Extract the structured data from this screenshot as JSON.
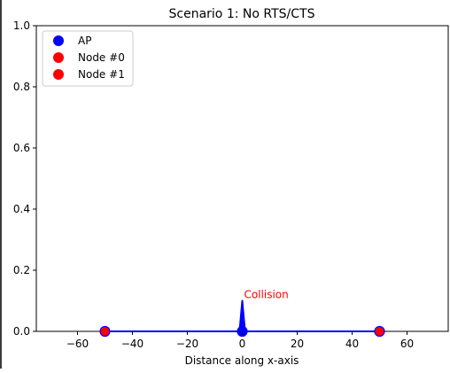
{
  "chart_data": {
    "type": "scatter",
    "title": "Scenario 1: No RTS/CTS",
    "xlabel": "Distance along x-axis",
    "ylabel": "",
    "xlim": [
      -75,
      75
    ],
    "ylim": [
      0,
      1.0
    ],
    "xticks": [
      -60,
      -40,
      -20,
      0,
      20,
      40,
      60
    ],
    "xtick_labels": [
      "−60",
      "−40",
      "−20",
      "0",
      "20",
      "40",
      "60"
    ],
    "yticks": [
      0.0,
      0.2,
      0.4,
      0.6,
      0.8,
      1.0
    ],
    "ytick_labels": [
      "0.0",
      "0.2",
      "0.4",
      "0.6",
      "0.8",
      "1.0"
    ],
    "grid": false,
    "legend_position": "top-left",
    "series": [
      {
        "name": "AP",
        "color": "#0000ff",
        "marker": "circle",
        "points": [
          [
            0,
            0
          ]
        ]
      },
      {
        "name": "Node #0",
        "color": "#ff0000",
        "marker": "circle",
        "points": [
          [
            -50,
            0
          ]
        ]
      },
      {
        "name": "Node #1",
        "color": "#ff0000",
        "marker": "circle",
        "points": [
          [
            50,
            0
          ]
        ]
      }
    ],
    "signal": {
      "color": "#0000ff",
      "x": [
        -50,
        -1,
        0,
        1,
        50
      ],
      "y": [
        0,
        0,
        0.1,
        0,
        0
      ]
    },
    "annotations": [
      {
        "text": "Collision",
        "x": 0,
        "y": 0.1,
        "color": "#ff0000"
      }
    ]
  }
}
